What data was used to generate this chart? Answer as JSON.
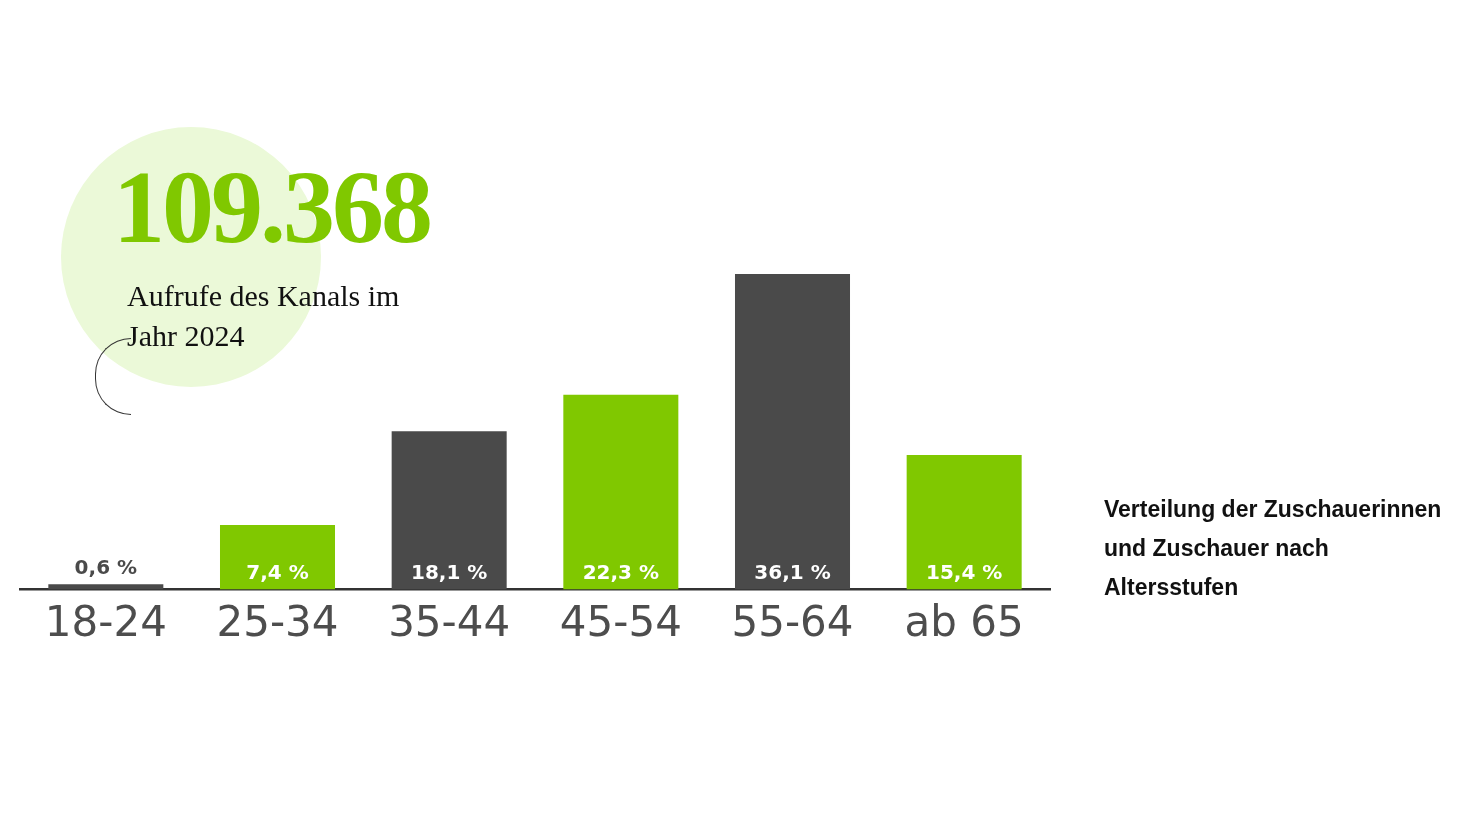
{
  "chart_data": {
    "type": "bar",
    "title": "Verteilung der Zuschauerinnen und Zuschauer nach Altersstufen",
    "categories": [
      "18-24",
      "25-34",
      "35-44",
      "45-54",
      "55-64",
      "ab 65"
    ],
    "values": [
      0.6,
      7.4,
      18.1,
      22.3,
      36.1,
      15.4
    ],
    "colors": [
      "#4a4a4a",
      "#80c800",
      "#4a4a4a",
      "#80c800",
      "#4a4a4a",
      "#80c800"
    ],
    "value_labels": [
      "0,6 %",
      "7,4 %",
      "18,1 %",
      "22,3 %",
      "36,1 %",
      "15,4 %"
    ],
    "annotations": [
      "109.368",
      "Aufrufe des Kanals im Jahr 2024"
    ]
  }
}
